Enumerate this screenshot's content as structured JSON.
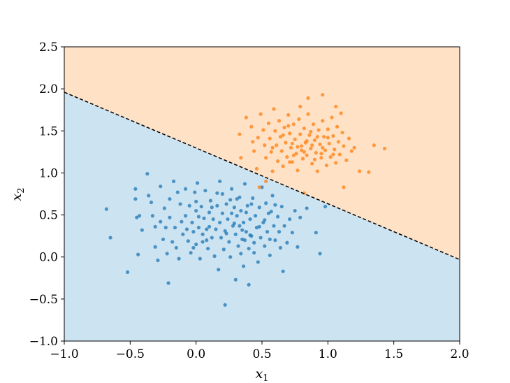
{
  "chart_data": {
    "type": "scatter",
    "title": "",
    "xlabel_base": "x",
    "xlabel_sub": "1",
    "ylabel_base": "x",
    "ylabel_sub": "2",
    "xlim": [
      -1.0,
      2.0
    ],
    "ylim": [
      -1.0,
      2.5
    ],
    "grid": false,
    "x_ticks": [
      -1.0,
      -0.5,
      0.0,
      0.5,
      1.0,
      1.5,
      2.0
    ],
    "x_tick_labels": [
      "−1.0",
      "−0.5",
      "0.0",
      "0.5",
      "1.0",
      "1.5",
      "2.0"
    ],
    "y_ticks": [
      -1.0,
      -0.5,
      0.0,
      0.5,
      1.0,
      1.5,
      2.0,
      2.5
    ],
    "y_tick_labels": [
      "−1.0",
      "−0.5",
      "0.0",
      "0.5",
      "1.0",
      "1.5",
      "2.0",
      "2.5"
    ],
    "decision_boundary": {
      "style": "dashed",
      "color": "#000000",
      "x": [
        -1.0,
        2.0
      ],
      "y": [
        1.96,
        -0.03
      ]
    },
    "regions": [
      {
        "side": "below",
        "color": "#cce3f1"
      },
      {
        "side": "above",
        "color": "#ffe1c6"
      }
    ],
    "series": [
      {
        "color": "#1f77b4",
        "points": [
          [
            -0.68,
            0.57
          ],
          [
            -0.65,
            0.23
          ],
          [
            -0.52,
            -0.18
          ],
          [
            -0.46,
            0.81
          ],
          [
            -0.46,
            0.69
          ],
          [
            -0.45,
            0.47
          ],
          [
            -0.44,
            0.03
          ],
          [
            -0.43,
            0.49
          ],
          [
            -0.41,
            0.32
          ],
          [
            -0.37,
            0.99
          ],
          [
            -0.36,
            0.73
          ],
          [
            -0.34,
            0.65
          ],
          [
            -0.33,
            0.49
          ],
          [
            -0.31,
            0.36
          ],
          [
            -0.31,
            0.12
          ],
          [
            -0.29,
            -0.04
          ],
          [
            -0.27,
            0.84
          ],
          [
            -0.27,
            0.42
          ],
          [
            -0.25,
            0.21
          ],
          [
            -0.24,
            0.58
          ],
          [
            -0.23,
            0.35
          ],
          [
            -0.22,
            0.04
          ],
          [
            -0.21,
            -0.31
          ],
          [
            -0.2,
            0.69
          ],
          [
            -0.2,
            0.47
          ],
          [
            -0.18,
            0.18
          ],
          [
            -0.17,
            0.9
          ],
          [
            -0.16,
            0.35
          ],
          [
            -0.15,
            0.11
          ],
          [
            -0.13,
            -0.02
          ],
          [
            -0.12,
            0.63
          ],
          [
            -0.11,
            0.42
          ],
          [
            -0.1,
            0.27
          ],
          [
            -0.08,
            0.81
          ],
          [
            -0.08,
            0.49
          ],
          [
            -0.07,
            0.33
          ],
          [
            -0.06,
            0.19
          ],
          [
            -0.05,
            0.61
          ],
          [
            -0.04,
            0.05
          ],
          [
            -0.03,
            0.41
          ],
          [
            -0.02,
            0.3
          ],
          [
            -0.01,
            0.77
          ],
          [
            0.0,
            0.55
          ],
          [
            0.0,
            0.15
          ],
          [
            0.01,
            0.88
          ],
          [
            0.02,
            0.35
          ],
          [
            0.03,
            -0.02
          ],
          [
            0.04,
            0.6
          ],
          [
            0.05,
            0.27
          ],
          [
            0.06,
            0.46
          ],
          [
            0.07,
            0.79
          ],
          [
            0.08,
            0.2
          ],
          [
            0.09,
            0.1
          ],
          [
            0.1,
            0.53
          ],
          [
            0.1,
            0.36
          ],
          [
            0.11,
            0.67
          ],
          [
            0.12,
            0.23
          ],
          [
            0.13,
            0.45
          ],
          [
            0.14,
            0.01
          ],
          [
            0.15,
            0.33
          ],
          [
            0.16,
            0.61
          ],
          [
            0.17,
            -0.15
          ],
          [
            0.18,
            0.41
          ],
          [
            0.19,
            0.23
          ],
          [
            0.2,
            0.75
          ],
          [
            0.2,
            0.52
          ],
          [
            0.21,
            0.09
          ],
          [
            0.22,
            0.31
          ],
          [
            0.22,
            -0.57
          ],
          [
            0.23,
            0.63
          ],
          [
            0.24,
            0.45
          ],
          [
            0.25,
            0.18
          ],
          [
            0.26,
            0.0
          ],
          [
            0.27,
            0.81
          ],
          [
            0.28,
            0.37
          ],
          [
            0.29,
            0.59
          ],
          [
            0.3,
            0.27
          ],
          [
            0.3,
            -0.27
          ],
          [
            0.31,
            0.49
          ],
          [
            0.32,
            0.13
          ],
          [
            0.33,
            0.71
          ],
          [
            0.33,
            0.37
          ],
          [
            0.34,
            0.55
          ],
          [
            0.35,
            0.21
          ],
          [
            0.36,
            0.41
          ],
          [
            0.36,
            -0.11
          ],
          [
            0.37,
            0.87
          ],
          [
            0.38,
            0.3
          ],
          [
            0.39,
            0.61
          ],
          [
            0.4,
            0.1
          ],
          [
            0.4,
            -0.33
          ],
          [
            0.41,
            0.45
          ],
          [
            0.42,
            0.25
          ],
          [
            0.43,
            0.7
          ],
          [
            0.44,
            0.17
          ],
          [
            0.45,
            0.49
          ],
          [
            0.46,
            0.35
          ],
          [
            0.47,
            -0.06
          ],
          [
            0.48,
            0.59
          ],
          [
            0.49,
            0.23
          ],
          [
            0.5,
            0.83
          ],
          [
            0.51,
            0.41
          ],
          [
            0.52,
            0.13
          ],
          [
            0.53,
            0.64
          ],
          [
            0.54,
            0.3
          ],
          [
            0.55,
            0.52
          ],
          [
            0.56,
            0.02
          ],
          [
            0.58,
            0.73
          ],
          [
            0.59,
            0.37
          ],
          [
            0.6,
            0.2
          ],
          [
            0.62,
            0.48
          ],
          [
            0.63,
            0.3
          ],
          [
            0.65,
            0.6
          ],
          [
            0.66,
            -0.17
          ],
          [
            0.67,
            0.37
          ],
          [
            0.69,
            0.17
          ],
          [
            0.71,
            0.45
          ],
          [
            0.73,
            0.29
          ],
          [
            0.75,
            0.55
          ],
          [
            0.77,
            0.12
          ],
          [
            0.79,
            0.47
          ],
          [
            0.84,
            0.58
          ],
          [
            0.91,
            0.29
          ],
          [
            0.94,
            0.04
          ],
          [
            0.98,
            0.6
          ],
          [
            -0.14,
            0.77
          ],
          [
            0.0,
            0.66
          ],
          [
            0.05,
            0.18
          ],
          [
            0.12,
            0.59
          ],
          [
            0.16,
            0.76
          ],
          [
            0.23,
            0.28
          ],
          [
            0.27,
            0.52
          ],
          [
            0.31,
            0.69
          ],
          [
            0.35,
            0.32
          ],
          [
            0.38,
            0.53
          ],
          [
            0.42,
            0.63
          ],
          [
            0.44,
            0.05
          ],
          [
            0.48,
            0.36
          ],
          [
            0.52,
            0.44
          ],
          [
            0.56,
            0.21
          ],
          [
            0.6,
            0.62
          ],
          [
            0.64,
            0.11
          ],
          [
            0.34,
            0.04
          ],
          [
            0.08,
            0.33
          ],
          [
            -0.02,
            0.11
          ],
          [
            0.18,
            0.9
          ],
          [
            0.26,
            0.68
          ],
          [
            0.29,
            0.4
          ],
          [
            0.37,
            0.2
          ],
          [
            0.41,
            0.26
          ],
          [
            0.57,
            0.54
          ],
          [
            0.02,
            0.48
          ]
        ]
      },
      {
        "color": "#ff7f0e",
        "points": [
          [
            0.33,
            1.46
          ],
          [
            0.34,
            1.18
          ],
          [
            0.38,
            1.66
          ],
          [
            0.42,
            1.55
          ],
          [
            0.43,
            1.37
          ],
          [
            0.44,
            1.26
          ],
          [
            0.46,
            1.05
          ],
          [
            0.47,
            1.42
          ],
          [
            0.49,
            1.7
          ],
          [
            0.51,
            1.51
          ],
          [
            0.52,
            1.33
          ],
          [
            0.53,
            1.18
          ],
          [
            0.55,
            1.59
          ],
          [
            0.56,
            1.41
          ],
          [
            0.57,
            1.25
          ],
          [
            0.58,
            1.02
          ],
          [
            0.59,
            1.76
          ],
          [
            0.6,
            1.5
          ],
          [
            0.61,
            1.33
          ],
          [
            0.62,
            1.14
          ],
          [
            0.63,
            1.62
          ],
          [
            0.64,
            1.43
          ],
          [
            0.65,
            1.26
          ],
          [
            0.66,
            1.08
          ],
          [
            0.67,
            1.54
          ],
          [
            0.68,
            1.36
          ],
          [
            0.69,
            1.19
          ],
          [
            0.7,
            1.69
          ],
          [
            0.71,
            1.47
          ],
          [
            0.72,
            1.3
          ],
          [
            0.73,
            1.13
          ],
          [
            0.74,
            1.58
          ],
          [
            0.75,
            1.4
          ],
          [
            0.76,
            1.23
          ],
          [
            0.77,
            1.03
          ],
          [
            0.78,
            1.64
          ],
          [
            0.79,
            1.46
          ],
          [
            0.8,
            1.32
          ],
          [
            0.81,
            1.17
          ],
          [
            0.82,
            1.53
          ],
          [
            0.83,
            1.36
          ],
          [
            0.84,
            1.21
          ],
          [
            0.85,
            1.7
          ],
          [
            0.86,
            1.45
          ],
          [
            0.87,
            1.29
          ],
          [
            0.88,
            1.11
          ],
          [
            0.89,
            1.58
          ],
          [
            0.9,
            1.39
          ],
          [
            0.91,
            1.24
          ],
          [
            0.92,
            1.02
          ],
          [
            0.93,
            1.51
          ],
          [
            0.94,
            1.34
          ],
          [
            0.95,
            1.18
          ],
          [
            0.96,
            1.62
          ],
          [
            0.97,
            1.43
          ],
          [
            0.98,
            1.27
          ],
          [
            0.99,
            1.09
          ],
          [
            1.0,
            1.52
          ],
          [
            1.01,
            1.35
          ],
          [
            1.02,
            1.19
          ],
          [
            1.03,
            1.66
          ],
          [
            1.04,
            1.44
          ],
          [
            1.05,
            1.28
          ],
          [
            1.06,
            1.12
          ],
          [
            1.07,
            1.55
          ],
          [
            1.08,
            1.37
          ],
          [
            1.09,
            1.22
          ],
          [
            1.1,
            1.71
          ],
          [
            1.11,
            1.48
          ],
          [
            1.12,
            1.32
          ],
          [
            1.14,
            1.15
          ],
          [
            1.16,
            1.41
          ],
          [
            1.18,
            1.26
          ],
          [
            1.2,
            1.3
          ],
          [
            1.24,
            1.02
          ],
          [
            1.31,
            1.01
          ],
          [
            1.35,
            1.33
          ],
          [
            1.43,
            1.29
          ],
          [
            0.79,
            1.79
          ],
          [
            0.85,
            1.89
          ],
          [
            0.96,
            1.93
          ],
          [
            1.06,
            1.79
          ],
          [
            0.71,
            1.13
          ],
          [
            0.9,
            1.16
          ],
          [
            1.12,
            0.83
          ],
          [
            0.82,
            0.76
          ],
          [
            0.53,
            0.9
          ],
          [
            0.48,
            0.83
          ],
          [
            0.73,
            1.35
          ],
          [
            0.77,
            1.31
          ],
          [
            0.8,
            1.27
          ],
          [
            0.84,
            1.38
          ],
          [
            0.88,
            1.33
          ],
          [
            0.92,
            1.43
          ],
          [
            0.96,
            1.3
          ],
          [
            1.0,
            1.42
          ],
          [
            1.04,
            1.22
          ],
          [
            0.74,
            1.21
          ],
          [
            0.87,
            1.49
          ],
          [
            0.95,
            1.23
          ],
          [
            0.66,
            1.45
          ],
          [
            0.58,
            1.3
          ],
          [
            0.7,
            1.56
          ],
          [
            0.82,
            1.25
          ]
        ]
      }
    ]
  }
}
